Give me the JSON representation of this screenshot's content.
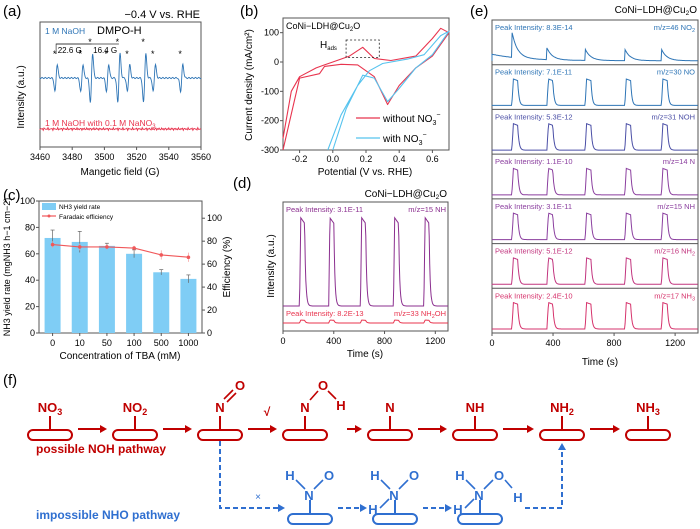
{
  "figure": {
    "panel_labels": [
      "(a)",
      "(b)",
      "(c)",
      "(d)",
      "(e)",
      "(f)"
    ]
  },
  "colors": {
    "blue": "#2e75b6",
    "red": "#e8344e",
    "cyan": "#56c3ee",
    "bar_blue": "#7fcdf5",
    "line_red": "#f0585a",
    "purple": "#8b2f8f",
    "pink": "#e0457a",
    "dark_red": "#c00000",
    "path_blue": "#2f6fd0"
  },
  "chart_data": [
    {
      "id": "a",
      "type": "line",
      "title": "−0.4 V vs. RHE",
      "annotation_species": "DMPO-H",
      "xlabel": "Mangetic field (G)",
      "ylabel": "Intensity (a.u.)",
      "xlim": [
        3460,
        3560
      ],
      "xticks": [
        "3460",
        "3480",
        "3500",
        "3520",
        "3540",
        "3560"
      ],
      "hyperfine_labels": [
        "22.6 G",
        "16.4 G"
      ],
      "series": [
        {
          "name": "1 M NaOH",
          "peaks_G": [
            3470,
            3486,
            3492,
            3502,
            3509,
            3515,
            3525,
            3531,
            3548
          ],
          "peak_amplitudes": [
            0.55,
            0.55,
            1.0,
            0.55,
            1.0,
            0.55,
            1.0,
            0.55,
            0.55
          ]
        },
        {
          "name": "1 M NaOH with 0.1 M NaNO3",
          "peaks_G": [],
          "peak_amplitudes": []
        }
      ],
      "legend_text": {
        "s1": "1 M NaOH",
        "s2_main": "1 M NaOH with 0.1 M NaNO",
        "s2_sub": "3"
      }
    },
    {
      "id": "b",
      "type": "line",
      "inset_label_main": "CoNi−LDH@Cu",
      "inset_label_sub": "2",
      "inset_label_tail": "O",
      "annotation": "H",
      "annotation_sub": "ads",
      "xlabel": "Potential (V vs. RHE)",
      "ylabel": "Current density (mA/cm²)",
      "xlim": [
        -0.3,
        0.7
      ],
      "ylim": [
        -300,
        150
      ],
      "xticks": [
        "-0.2",
        "0.0",
        "0.2",
        "0.4",
        "0.6"
      ],
      "yticks": [
        "100",
        "0",
        "-100",
        "-200",
        "-300"
      ],
      "series": [
        {
          "name": "without NO3−",
          "legend_main": "without NO",
          "legend_sub": "3",
          "legend_sup": "−",
          "x_fwd": [
            -0.3,
            -0.25,
            -0.2,
            -0.1,
            -0.05,
            0.0,
            0.1,
            0.18,
            0.25,
            0.35,
            0.5,
            0.6,
            0.65,
            0.7
          ],
          "y_fwd": [
            -260,
            -100,
            -50,
            -20,
            -10,
            0,
            20,
            50,
            12,
            5,
            20,
            80,
            115,
            100
          ],
          "x_rev": [
            0.7,
            0.6,
            0.5,
            0.4,
            0.33,
            0.25,
            0.15,
            0.05,
            -0.05,
            -0.08,
            -0.2,
            -0.3
          ],
          "y_rev": [
            100,
            20,
            -20,
            -80,
            -145,
            -50,
            -10,
            -8,
            -15,
            -40,
            -55,
            -300
          ]
        },
        {
          "name": "with NO3−",
          "legend_main": "with NO",
          "legend_sub": "3",
          "legend_sup": "−",
          "x_fwd": [
            -0.03,
            0.05,
            0.15,
            0.22,
            0.3,
            0.45,
            0.55,
            0.65,
            0.7
          ],
          "y_fwd": [
            -300,
            -180,
            -80,
            -30,
            -5,
            10,
            25,
            90,
            105
          ],
          "x_rev": [
            0.7,
            0.6,
            0.5,
            0.4,
            0.33,
            0.25,
            0.18,
            0.08,
            0.0
          ],
          "y_rev": [
            105,
            25,
            -20,
            -90,
            -135,
            -55,
            -45,
            -160,
            -300
          ]
        }
      ]
    },
    {
      "id": "c",
      "type": "bar",
      "categories": [
        "0",
        "10",
        "50",
        "100",
        "500",
        "1000"
      ],
      "xlabel": "Concentration of TBA (mM)",
      "ylabel_main": "NH",
      "ylabel_text": "NH3 yield rate (mgNH3 h−1 cm−2)",
      "ylabel_right": "Efficiency (%)",
      "ylim": [
        0,
        100
      ],
      "ylim_right": [
        0,
        115
      ],
      "yticks": [
        "0",
        "20",
        "40",
        "60",
        "80",
        "100"
      ],
      "yticks_right": [
        "0",
        "20",
        "40",
        "60",
        "80",
        "100"
      ],
      "series": [
        {
          "name": "NH3 yield rate",
          "legend": "NH3 yield rate",
          "values": [
            72,
            69,
            66,
            60,
            46,
            41
          ],
          "errors": [
            6,
            8,
            2,
            3,
            2,
            3
          ]
        },
        {
          "name": "Faradaic efficiency",
          "legend": "Faradaic efficiency",
          "values": [
            77,
            75,
            75,
            74,
            68,
            66
          ],
          "errors": [
            3,
            3,
            2,
            2,
            4,
            4
          ]
        }
      ]
    },
    {
      "id": "d",
      "type": "line",
      "title_main": "CoNi−LDH@Cu",
      "title_sub": "2",
      "title_tail": "O",
      "xlabel": "Time (s)",
      "ylabel": "Intensity (a.u.)",
      "xlim": [
        0,
        1300
      ],
      "xticks": [
        "0",
        "400",
        "800",
        "1200"
      ],
      "pulse_starts_s": [
        130,
        360,
        610,
        870,
        1110
      ],
      "series": [
        {
          "name": "m/z=15 NH",
          "peak_text": "Peak Intensity: 3.1E-11",
          "mz_text": "m/z=15 NH",
          "mz_sub": "",
          "relative_peaks": [
            1.0,
            0.96,
            0.93,
            0.9,
            0.88
          ]
        },
        {
          "name": "m/z=33 NH2OH",
          "peak_text": "Peak Intensity: 8.2E-13",
          "mz_text": "m/z=33 NH",
          "mz_sub": "2",
          "mz_tail": "OH",
          "relative_peaks": [
            0.03,
            0.03,
            0.03,
            0.03,
            0.03
          ]
        }
      ]
    },
    {
      "id": "e",
      "type": "line",
      "title_main": "CoNi−LDH@Cu",
      "title_sub": "2",
      "title_tail": "O",
      "xlabel": "Time (s)",
      "xlim": [
        0,
        1350
      ],
      "xticks": [
        "0",
        "400",
        "800",
        "1200"
      ],
      "pulse_starts_s": [
        130,
        360,
        610,
        870,
        1110
      ],
      "series": [
        {
          "name": "m/z=46 NO2",
          "peak_text": "Peak Intensity: 8.3E-14",
          "mz_text": "m/z=46 NO",
          "mz_sub": "2",
          "shape": "decay"
        },
        {
          "name": "m/z=30 NO",
          "peak_text": "Peak Intensity: 7.1E-11",
          "mz_text": "m/z=30 NO",
          "mz_sub": "",
          "shape": "pulse"
        },
        {
          "name": "m/z=31 NOH",
          "peak_text": "Peak Intensity: 5.3E-12",
          "mz_text": "m/z=31 NOH",
          "mz_sub": "",
          "shape": "pulse"
        },
        {
          "name": "m/z=14 N",
          "peak_text": "Peak Intensity: 1.1E-10",
          "mz_text": "m/z=14 N",
          "mz_sub": "",
          "shape": "pulse"
        },
        {
          "name": "m/z=15 NH",
          "peak_text": "Peak Intensity: 3.1E-11",
          "mz_text": "m/z=15 NH",
          "mz_sub": "",
          "shape": "pulse"
        },
        {
          "name": "m/z=16 NH2",
          "peak_text": "Peak Intensity: 5.1E-12",
          "mz_text": "m/z=16 NH",
          "mz_sub": "2",
          "shape": "pulse"
        },
        {
          "name": "m/z=17 NH3",
          "peak_text": "Peak Intensity: 2.4E-10",
          "mz_text": "m/z=17 NH",
          "mz_sub": "3",
          "shape": "pulse"
        }
      ]
    }
  ],
  "pathway": {
    "noh_label": "possible NOH pathway",
    "nho_label": "impossible NHO pathway",
    "check_mark": "√",
    "cross_mark": "×",
    "noh_steps": [
      {
        "main": "NO",
        "sub": "3"
      },
      {
        "main": "NO",
        "sub": "2"
      },
      {
        "main": "N",
        "sub": "",
        "extra": "=O"
      },
      {
        "main": "N",
        "sub": "",
        "extra": "-O-H"
      },
      {
        "main": "N",
        "sub": ""
      },
      {
        "main": "NH",
        "sub": ""
      },
      {
        "main": "NH",
        "sub": "2"
      },
      {
        "main": "NH",
        "sub": "3"
      }
    ],
    "nho_steps": [
      {
        "atoms": [
          "H",
          "N",
          "O"
        ]
      },
      {
        "atoms": [
          "H",
          "N",
          "O",
          "H"
        ]
      },
      {
        "atoms": [
          "H",
          "N",
          "O",
          "H"
        ]
      }
    ],
    "atoms": {
      "N": "N",
      "O": "O",
      "H": "H"
    }
  }
}
